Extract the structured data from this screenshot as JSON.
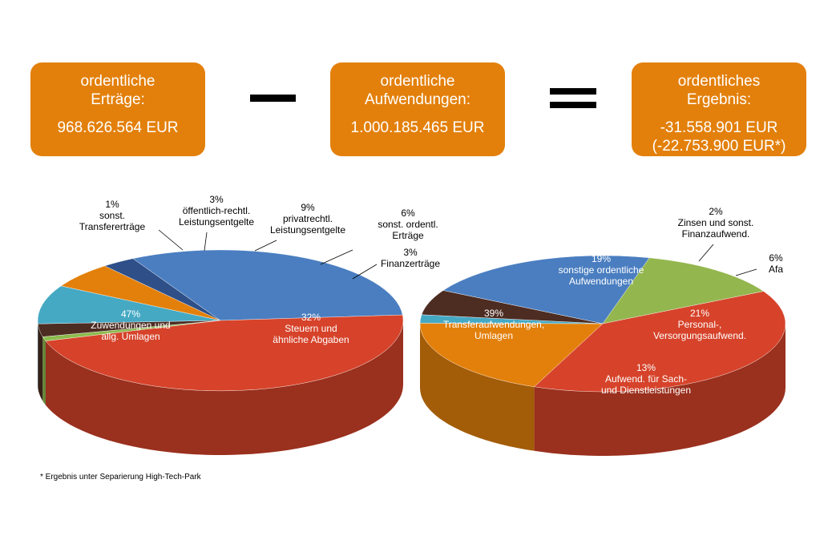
{
  "header": {
    "ertraege": {
      "line1": "ordentliche",
      "line2": "Erträge:",
      "value": "968.626.564 EUR"
    },
    "minus": "−",
    "aufwendungen": {
      "line1": "ordentliche",
      "line2": "Aufwendungen:",
      "value": "1.000.185.465 EUR"
    },
    "equals": "=",
    "ergebnis": {
      "line1": "ordentliches",
      "line2": "Ergebnis:",
      "value": "-31.558.901 EUR",
      "value2": "(-22.753.900 EUR*)"
    },
    "box_color": "#e3800b"
  },
  "footnote": "* Ergebnis unter Separierung High-Tech-Park",
  "chart_data": [
    {
      "type": "pie",
      "title": "",
      "slices": [
        {
          "label": [
            "1%",
            "sonst.",
            "Transfererträge"
          ],
          "value": 1,
          "color": "#8cbb4c"
        },
        {
          "label": [
            "3%",
            "öffentlich-rechtl.",
            "Leistungsentgelte"
          ],
          "value": 3,
          "color": "#4d2c22"
        },
        {
          "label": [
            "9%",
            "privatrechtl.",
            "Leistungsentgelte"
          ],
          "value": 9,
          "color": "#45a9c4"
        },
        {
          "label": [
            "6%",
            "sonst. ordentl.",
            "Erträge"
          ],
          "value": 6,
          "color": "#e3800b"
        },
        {
          "label": [
            "3%",
            "Finanzerträge"
          ],
          "value": 3,
          "color": "#2e4f88"
        },
        {
          "label": [
            "32%",
            "Steuern und",
            "ähnliche Abgaben"
          ],
          "value": 32,
          "color": "#4a7ec0"
        },
        {
          "label": [
            "47%",
            "Zuwendungen und",
            "allg. Umlagen"
          ],
          "value": 47,
          "color": "#d6432a"
        }
      ]
    },
    {
      "type": "pie",
      "title": "",
      "slices": [
        {
          "label": [
            "19%",
            "sonstige ordentliche",
            "Aufwendungen"
          ],
          "value": 19,
          "color": "#e3800b"
        },
        {
          "label": [
            "2%",
            "Zinsen und sonst.",
            "Finanzaufwend."
          ],
          "value": 2,
          "color": "#45a9c4"
        },
        {
          "label": [
            "6%",
            "Afa"
          ],
          "value": 6,
          "color": "#4d2c22"
        },
        {
          "label": [
            "21%",
            "Personal-,",
            "Versorgungsaufwend."
          ],
          "value": 21,
          "color": "#4a7ec0"
        },
        {
          "label": [
            "13%",
            "Aufwend. für Sach-",
            "und Dienstleistungen"
          ],
          "value": 13,
          "color": "#93b64e"
        },
        {
          "label": [
            "39%",
            "Transferaufwendungen,",
            "Umlagen"
          ],
          "value": 39,
          "color": "#d6432a"
        }
      ]
    }
  ]
}
